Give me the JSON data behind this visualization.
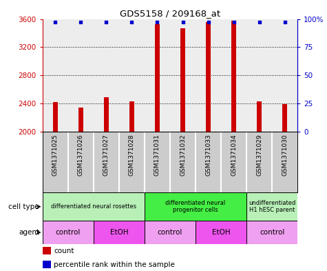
{
  "title": "GDS5158 / 209168_at",
  "samples": [
    "GSM1371025",
    "GSM1371026",
    "GSM1371027",
    "GSM1371028",
    "GSM1371031",
    "GSM1371032",
    "GSM1371033",
    "GSM1371034",
    "GSM1371029",
    "GSM1371030"
  ],
  "counts": [
    2420,
    2340,
    2490,
    2430,
    3530,
    3470,
    3560,
    3580,
    2430,
    2390
  ],
  "percentile_ranks": [
    97,
    97,
    97,
    97,
    97,
    97,
    97,
    97,
    97,
    97
  ],
  "ylim_left": [
    2000,
    3600
  ],
  "ylim_right": [
    0,
    100
  ],
  "yticks_left": [
    2000,
    2400,
    2800,
    3200,
    3600
  ],
  "yticks_right": [
    0,
    25,
    50,
    75,
    100
  ],
  "cell_types": [
    {
      "label": "differentiated neural rosettes",
      "start": 0,
      "end": 3,
      "color": "#b8f0b8"
    },
    {
      "label": "differentiated neural\nprogenitor cells",
      "start": 4,
      "end": 7,
      "color": "#44ee44"
    },
    {
      "label": "undifferentiated\nH1 hESC parent",
      "start": 8,
      "end": 9,
      "color": "#b8f0b8"
    }
  ],
  "agents": [
    {
      "label": "control",
      "start": 0,
      "end": 1,
      "color": "#f0a0f0"
    },
    {
      "label": "EtOH",
      "start": 2,
      "end": 3,
      "color": "#ee55ee"
    },
    {
      "label": "control",
      "start": 4,
      "end": 5,
      "color": "#f0a0f0"
    },
    {
      "label": "EtOH",
      "start": 6,
      "end": 7,
      "color": "#ee55ee"
    },
    {
      "label": "control",
      "start": 8,
      "end": 9,
      "color": "#f0a0f0"
    }
  ],
  "bar_color": "#cc0000",
  "dot_color": "#0000cc",
  "left_axis_color": "#cc0000",
  "right_axis_color": "#0000cc",
  "sample_bg_color": "#cccccc",
  "col_sep_color": "#ffffff",
  "grid_color": "#000000"
}
